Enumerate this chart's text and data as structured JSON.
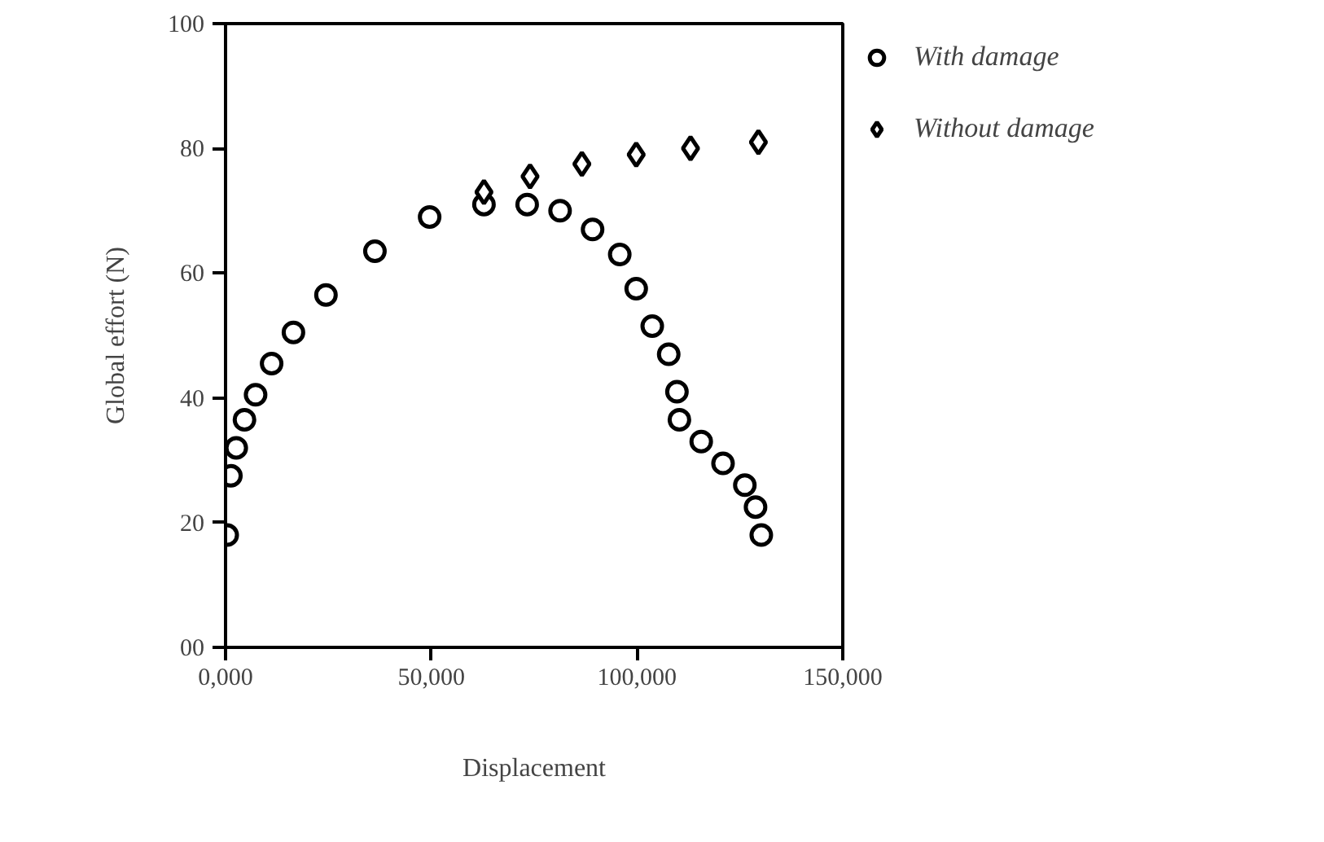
{
  "chart_data": {
    "type": "scatter",
    "xlabel": "Displacement",
    "ylabel": "Global effort (N)",
    "xlim": [
      0,
      150000
    ],
    "ylim": [
      0,
      100
    ],
    "xticks": [
      {
        "value": 0,
        "label": "0,000"
      },
      {
        "value": 50000,
        "label": "50,000"
      },
      {
        "value": 100000,
        "label": "100,000"
      },
      {
        "value": 150000,
        "label": "150,000"
      }
    ],
    "yticks": [
      {
        "value": 0,
        "label": "00"
      },
      20,
      40,
      60,
      80,
      100
    ],
    "grid": false,
    "legend": "right",
    "series": [
      {
        "name": "With damage",
        "color": "#000000",
        "marker": "circle",
        "x": [
          400,
          1300,
          2600,
          4600,
          7300,
          11200,
          16500,
          24400,
          36300,
          49600,
          62800,
          73300,
          81300,
          89200,
          95800,
          99800,
          103700,
          107700,
          109700,
          110300,
          115600,
          120900,
          126200,
          128800,
          130200
        ],
        "values": [
          18,
          27.5,
          32,
          36.5,
          40.5,
          45.5,
          50.5,
          56.5,
          63.5,
          69,
          71,
          71,
          70,
          67,
          63,
          57.5,
          51.5,
          47,
          41,
          36.5,
          33,
          29.5,
          26,
          22.5,
          18
        ]
      },
      {
        "name": "Without damage",
        "color": "#000000",
        "marker": "diamond",
        "x": [
          62800,
          74000,
          86600,
          99800,
          113000,
          129500
        ],
        "values": [
          73,
          75.5,
          77.5,
          79,
          80,
          81
        ]
      }
    ]
  }
}
